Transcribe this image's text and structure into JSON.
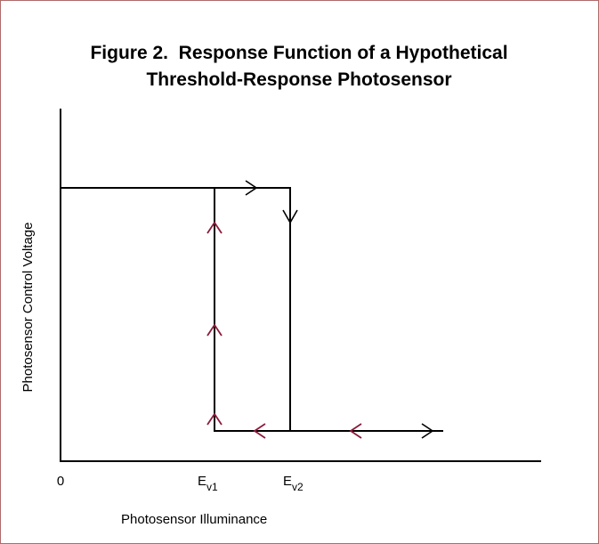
{
  "figure": {
    "title": [
      "Figure 2.  Response Function of a Hypothetical",
      "Threshold-Response Photosensor"
    ],
    "y_axis_label": "Photosensor Control Voltage",
    "x_axis_label": "Photosensor Illuminance",
    "x_tick_labels": [
      {
        "text": "0"
      },
      {
        "text": "E",
        "subscript": "v1"
      },
      {
        "text": "E",
        "subscript": "v2"
      }
    ]
  }
}
